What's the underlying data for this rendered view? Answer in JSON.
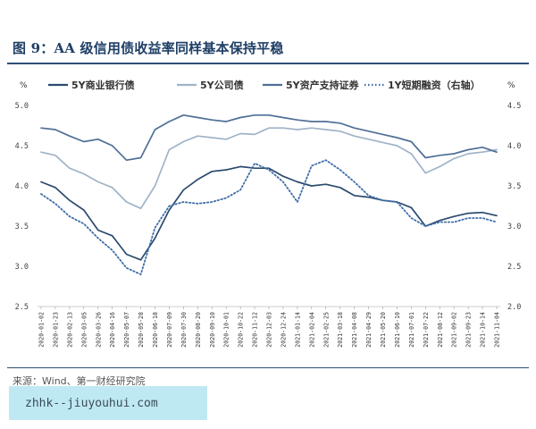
{
  "figure": {
    "title": "图 9：AA 级信用债收益率同样基本保持平稳",
    "source": "来源：Wind、第一财经研究院",
    "watermark": "zhhk--jiuyouhui.com"
  },
  "chart_data": {
    "type": "line",
    "left_unit": "%",
    "right_unit": "%",
    "ylim": [
      2.5,
      5.0
    ],
    "y2lim": [
      2.0,
      4.5
    ],
    "yticks": [
      "5.0",
      "4.5",
      "4.0",
      "3.5",
      "3.0",
      "2.5"
    ],
    "y2ticks": [
      "4.5",
      "4.0",
      "3.5",
      "3.0",
      "2.5",
      "2.0"
    ],
    "grid": false,
    "legend_position": "top",
    "x_labels": [
      "2020-01-02",
      "2020-01-23",
      "2020-02-13",
      "2020-03-05",
      "2020-03-26",
      "2020-04-16",
      "2020-05-07",
      "2020-05-28",
      "2020-06-18",
      "2020-07-09",
      "2020-07-30",
      "2020-08-20",
      "2020-09-10",
      "2020-10-01",
      "2020-10-22",
      "2020-11-12",
      "2020-12-03",
      "2020-12-24",
      "2021-01-14",
      "2021-02-04",
      "2021-02-25",
      "2021-03-18",
      "2021-04-08",
      "2021-04-29",
      "2021-05-20",
      "2021-06-10",
      "2021-07-01",
      "2021-07-22",
      "2021-08-12",
      "2021-09-02",
      "2021-09-23",
      "2021-10-14",
      "2021-11-04"
    ],
    "series": [
      {
        "name": "5Y商业银行债",
        "axis": "left",
        "color": "#2b4a6e",
        "style": "solid",
        "values": [
          4.05,
          3.98,
          3.82,
          3.7,
          3.45,
          3.38,
          3.15,
          3.08,
          3.35,
          3.7,
          3.95,
          4.08,
          4.18,
          4.2,
          4.24,
          4.22,
          4.22,
          4.12,
          4.05,
          4.0,
          4.02,
          3.98,
          3.88,
          3.86,
          3.82,
          3.8,
          3.73,
          3.5,
          3.57,
          3.62,
          3.66,
          3.67,
          3.63
        ]
      },
      {
        "name": "5Y公司债",
        "axis": "left",
        "color": "#9fb3c8",
        "style": "solid",
        "values": [
          4.42,
          4.38,
          4.22,
          4.15,
          4.05,
          3.98,
          3.8,
          3.72,
          4.0,
          4.45,
          4.55,
          4.62,
          4.6,
          4.58,
          4.65,
          4.64,
          4.72,
          4.72,
          4.7,
          4.72,
          4.7,
          4.68,
          4.62,
          4.58,
          4.54,
          4.5,
          4.4,
          4.16,
          4.24,
          4.34,
          4.4,
          4.42,
          4.45
        ]
      },
      {
        "name": "5Y资产支持证券",
        "axis": "left",
        "color": "#4f6f96",
        "style": "solid",
        "values": [
          4.72,
          4.7,
          4.62,
          4.55,
          4.58,
          4.5,
          4.32,
          4.35,
          4.7,
          4.8,
          4.88,
          4.85,
          4.82,
          4.8,
          4.85,
          4.88,
          4.88,
          4.85,
          4.82,
          4.8,
          4.8,
          4.78,
          4.72,
          4.68,
          4.64,
          4.6,
          4.55,
          4.35,
          4.38,
          4.4,
          4.45,
          4.48,
          4.42
        ]
      },
      {
        "name": "1Y短期融资（右轴）",
        "axis": "right",
        "color": "#3f6ea8",
        "style": "dotted",
        "values": [
          3.4,
          3.28,
          3.12,
          3.03,
          2.85,
          2.7,
          2.48,
          2.4,
          2.98,
          3.25,
          3.3,
          3.28,
          3.3,
          3.35,
          3.45,
          3.78,
          3.7,
          3.55,
          3.3,
          3.75,
          3.82,
          3.7,
          3.55,
          3.38,
          3.32,
          3.3,
          3.1,
          3.0,
          3.05,
          3.05,
          3.1,
          3.1,
          3.05
        ]
      }
    ]
  }
}
